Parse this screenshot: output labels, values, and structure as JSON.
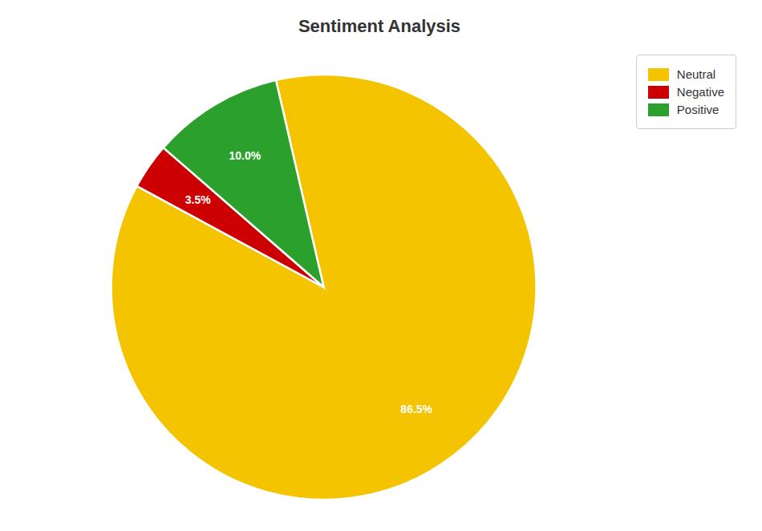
{
  "chart_data": {
    "type": "pie",
    "title": "Sentiment Analysis",
    "categories": [
      "Neutral",
      "Negative",
      "Positive"
    ],
    "values": [
      86.5,
      3.5,
      10.0
    ],
    "value_labels": [
      "86.5%",
      "3.5%",
      "10.0%"
    ],
    "colors": [
      "#f5c400",
      "#cc0000",
      "#2ca02c"
    ],
    "data_labels": true,
    "legend": "upper right"
  }
}
